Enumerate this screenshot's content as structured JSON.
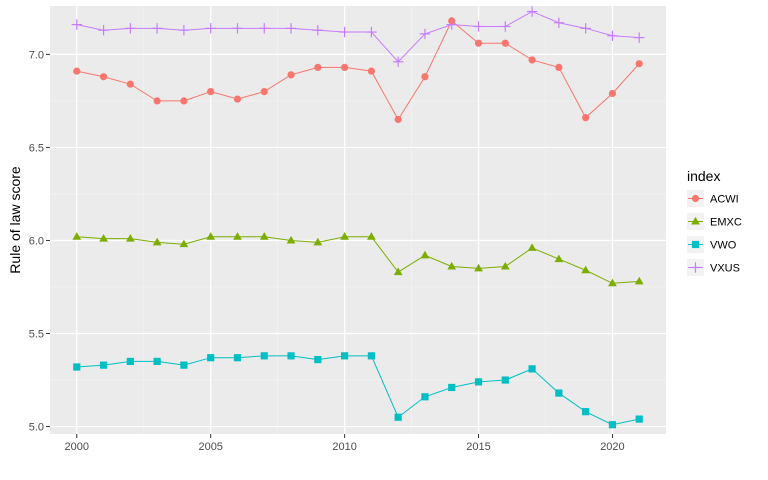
{
  "chart_data": {
    "type": "line",
    "title": "",
    "xlabel": "",
    "ylabel": "Rule of law score",
    "xlim": [
      1999.0,
      2022.0
    ],
    "ylim": [
      4.96,
      7.26
    ],
    "x_ticks": [
      2000,
      2005,
      2010,
      2015,
      2020
    ],
    "y_ticks": [
      5.0,
      5.5,
      6.0,
      6.5,
      7.0
    ],
    "x_tick_labels": [
      "2000",
      "2005",
      "2010",
      "2015",
      "2020"
    ],
    "y_tick_labels": [
      "5.0",
      "5.5",
      "6.0",
      "6.5",
      "7.0"
    ],
    "grid": true,
    "legend_title": "index",
    "legend_position": "right",
    "x": [
      2000,
      2001,
      2002,
      2003,
      2004,
      2005,
      2006,
      2007,
      2008,
      2009,
      2010,
      2011,
      2012,
      2013,
      2014,
      2015,
      2016,
      2017,
      2018,
      2019,
      2020,
      2021
    ],
    "series": [
      {
        "name": "ACWI",
        "color": "#F8766D",
        "marker": "circle",
        "values": [
          6.91,
          6.88,
          6.84,
          6.75,
          6.75,
          6.8,
          6.76,
          6.8,
          6.89,
          6.93,
          6.93,
          6.91,
          6.65,
          6.88,
          7.18,
          7.06,
          7.06,
          6.97,
          6.93,
          6.66,
          6.79,
          6.95
        ]
      },
      {
        "name": "EMXC",
        "color": "#7CAE00",
        "marker": "triangle",
        "values": [
          6.02,
          6.01,
          6.01,
          5.99,
          5.98,
          6.02,
          6.02,
          6.02,
          6.0,
          5.99,
          6.02,
          6.02,
          5.83,
          5.92,
          5.86,
          5.85,
          5.86,
          5.96,
          5.9,
          5.84,
          5.77,
          5.78
        ]
      },
      {
        "name": "VWO",
        "color": "#00BFC4",
        "marker": "square",
        "values": [
          5.32,
          5.33,
          5.35,
          5.35,
          5.33,
          5.37,
          5.37,
          5.38,
          5.38,
          5.36,
          5.38,
          5.38,
          5.05,
          5.16,
          5.21,
          5.24,
          5.25,
          5.31,
          5.18,
          5.08,
          5.01,
          5.04
        ]
      },
      {
        "name": "VXUS",
        "color": "#C77CFF",
        "marker": "plus",
        "values": [
          7.16,
          7.13,
          7.14,
          7.14,
          7.13,
          7.14,
          7.14,
          7.14,
          7.14,
          7.13,
          7.12,
          7.12,
          6.96,
          7.11,
          7.16,
          7.15,
          7.15,
          7.23,
          7.17,
          7.14,
          7.1,
          7.09
        ]
      }
    ]
  }
}
